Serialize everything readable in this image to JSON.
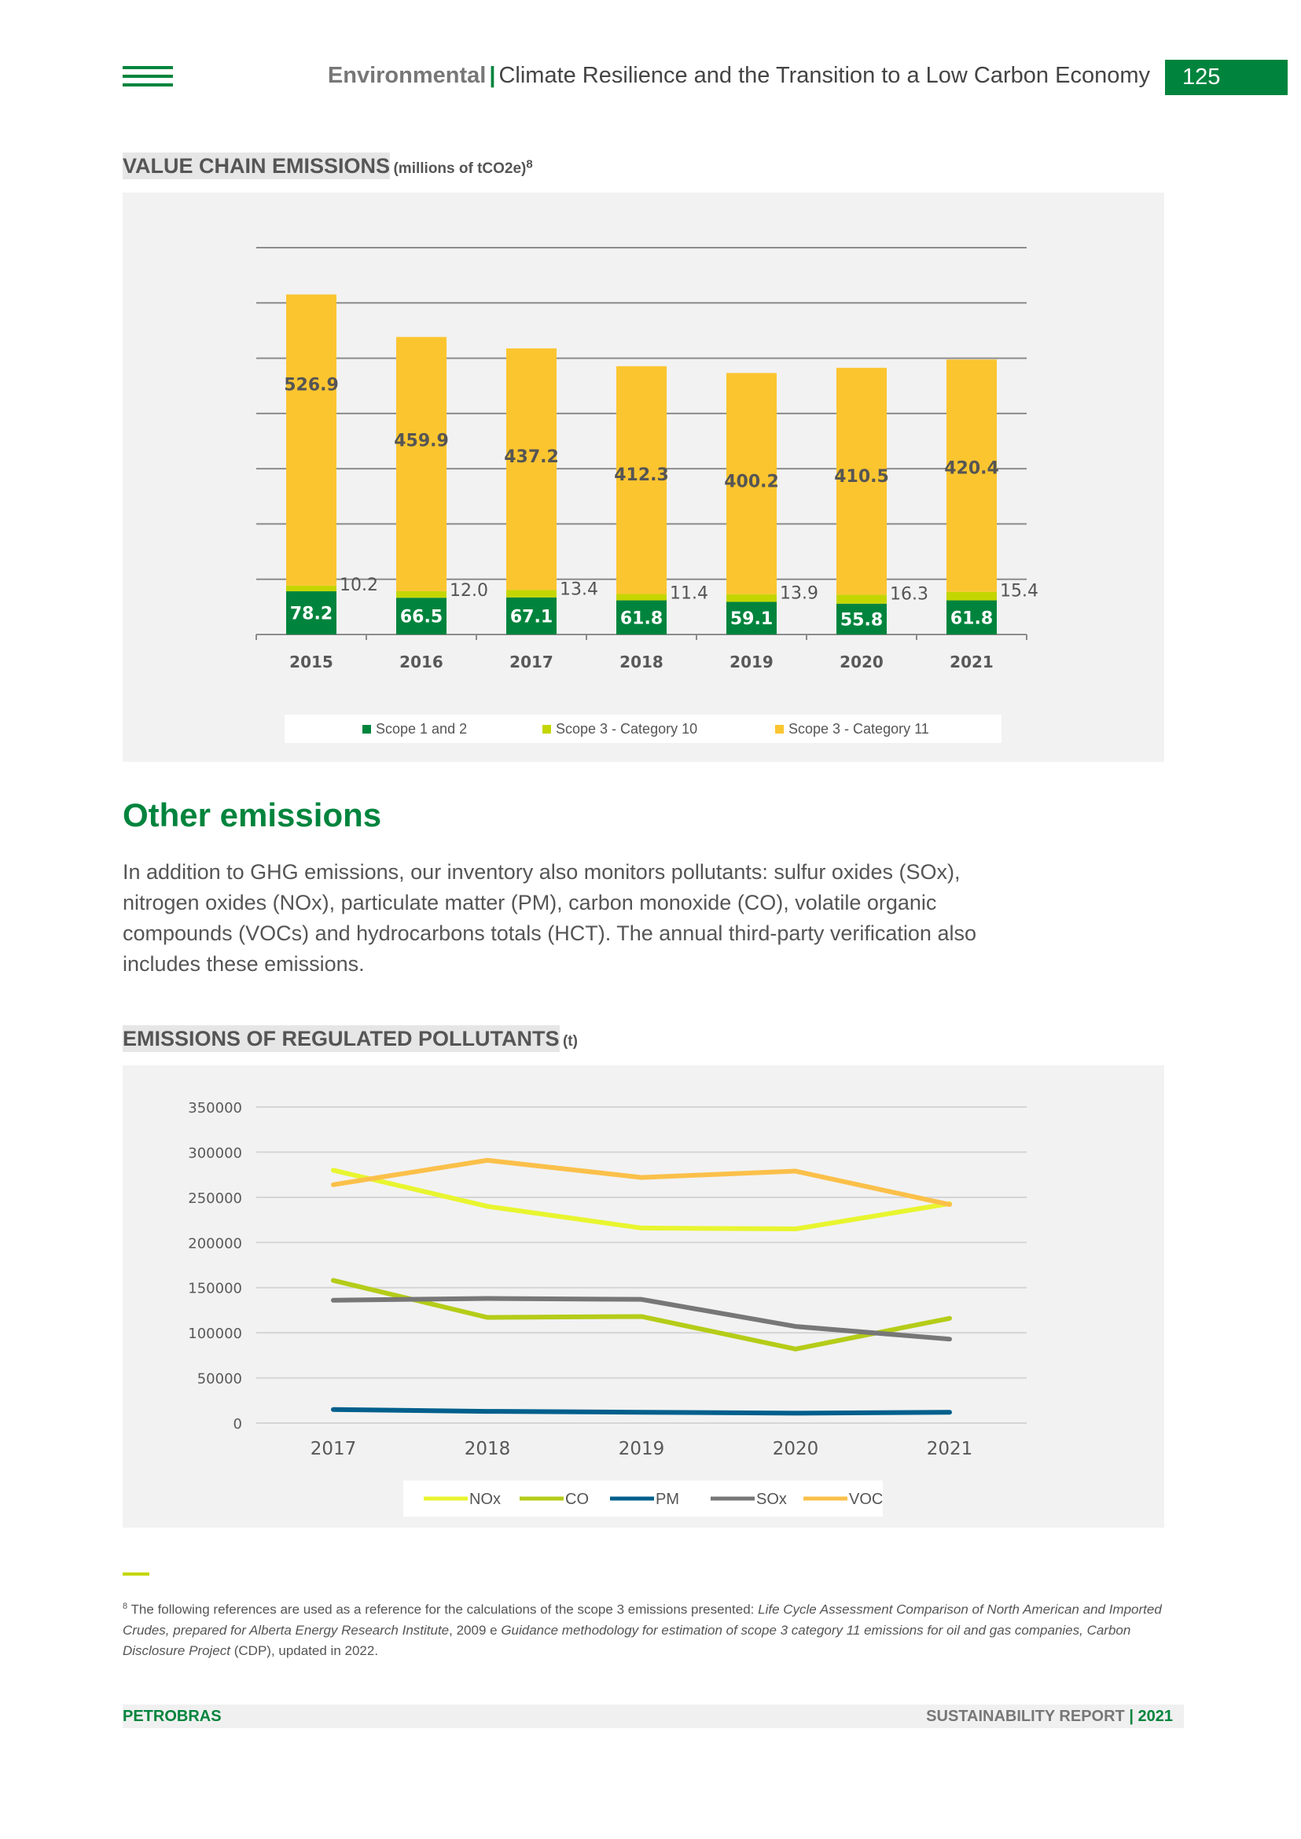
{
  "header": {
    "section": "Environmental",
    "separator": "|",
    "title": "Climate Resilience and the Transition to a Low Carbon Economy",
    "page_number": "125"
  },
  "chart1": {
    "heading": "VALUE CHAIN EMISSIONS",
    "unit": "(millions of tCO2e)",
    "footnote_ref": "8"
  },
  "other": {
    "title": "Other emissions",
    "intro": "In addition to GHG emissions, our inventory also monitors pollutants: sulfur oxides (SOx), nitrogen oxides (NOx), particulate matter (PM), carbon monoxide (CO), volatile organic compounds (VOCs) and hydrocarbons totals (HCT). The annual third-party verification also includes these emissions."
  },
  "chart2": {
    "heading": "EMISSIONS OF REGULATED POLLUTANTS",
    "unit": "(t)"
  },
  "chart_data": [
    {
      "type": "bar",
      "stacked": true,
      "categories": [
        "2015",
        "2016",
        "2017",
        "2018",
        "2019",
        "2020",
        "2021"
      ],
      "series": [
        {
          "name": "Scope 1 and 2",
          "color": "#00843d",
          "values": [
            78.2,
            66.5,
            67.1,
            61.8,
            59.1,
            55.8,
            61.8
          ]
        },
        {
          "name": "Scope 3 - Category 10",
          "color": "#c4d600",
          "values": [
            10.2,
            12.0,
            13.4,
            11.4,
            13.9,
            16.3,
            15.4
          ]
        },
        {
          "name": "Scope 3 - Category 11",
          "color": "#fbc530",
          "values": [
            526.9,
            459.9,
            437.2,
            412.3,
            400.2,
            410.5,
            420.4
          ]
        }
      ],
      "ylim": [
        0,
        700
      ],
      "grid": true,
      "legend": "bottom"
    },
    {
      "type": "line",
      "x": [
        "2017",
        "2018",
        "2019",
        "2020",
        "2021"
      ],
      "series": [
        {
          "name": "NOx",
          "color": "#e8f52f",
          "values": [
            280000,
            240000,
            216000,
            215000,
            243000
          ]
        },
        {
          "name": "CO",
          "color": "#b5cc18",
          "values": [
            158000,
            117000,
            118000,
            82000,
            116000
          ]
        },
        {
          "name": "PM",
          "color": "#005f8c",
          "values": [
            15000,
            13000,
            12000,
            11000,
            12000
          ]
        },
        {
          "name": "SOx",
          "color": "#777777",
          "values": [
            136000,
            138000,
            137000,
            107000,
            93000
          ]
        },
        {
          "name": "VOC",
          "color": "#fbc04a",
          "values": [
            264000,
            291000,
            272000,
            279000,
            242000
          ]
        }
      ],
      "yticks": [
        "350000",
        "300000",
        "250000",
        "200000",
        "150000",
        "100000",
        "50000",
        "0"
      ],
      "ylim": [
        0,
        350000
      ],
      "grid": true,
      "legend": "bottom"
    }
  ],
  "footnote": {
    "ref": "8",
    "text_start": "The following references are used as a reference for the calculations of the scope 3 emissions presented: ",
    "ref1_italic": "Life Cycle Assessment Comparison of North American and Imported Crudes, prepared for Alberta Energy Research Institute",
    "mid": ", 2009 e ",
    "ref2_italic": "Guidance methodology for estimation of scope 3 category 11 emissions for oil and gas companies, Carbon Disclosure Project",
    "end": " (CDP), updated in 2022."
  },
  "footer": {
    "company": "PETROBRAS",
    "report": "SUSTAINABILITY REPORT",
    "separator": "|",
    "year": "2021"
  }
}
